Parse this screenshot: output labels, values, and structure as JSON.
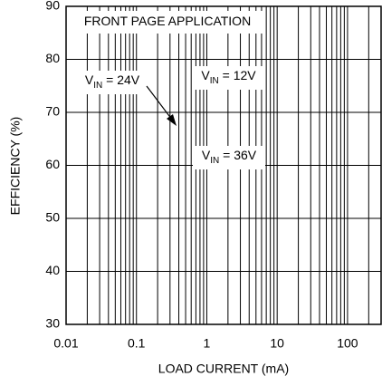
{
  "chart_data": {
    "type": "line",
    "xlabel": "LOAD CURRENT (mA)",
    "ylabel": "EFFICIENCY (%)",
    "xlim": [
      0.01,
      300
    ],
    "xticks": [
      0.01,
      0.1,
      1,
      10,
      100
    ],
    "xscale": "log",
    "ylim": [
      30,
      90
    ],
    "yticks": [
      30,
      40,
      50,
      60,
      70,
      80,
      90
    ],
    "grid": true,
    "series": [],
    "annotations": [
      {
        "text": "FRONT PAGE APPLICATION"
      },
      {
        "prefix": "V",
        "subscript": "IN",
        "suffix": " = 24V"
      },
      {
        "prefix": "V",
        "subscript": "IN",
        "suffix": " = 12V"
      },
      {
        "prefix": "V",
        "subscript": "IN",
        "suffix": " = 36V"
      }
    ]
  }
}
